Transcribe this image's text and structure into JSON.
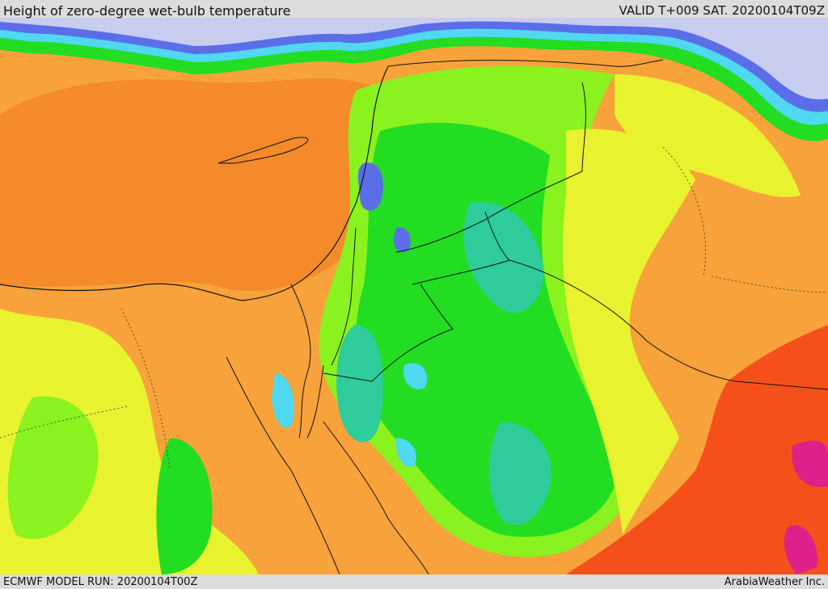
{
  "header": {
    "title": "Height of zero-degree wet-bulb temperature",
    "valid": "VALID T+009 SAT. 20200104T09Z"
  },
  "footer": {
    "model_run": "ECMWF MODEL RUN: 20200104T00Z",
    "credit": "ArabiaWeather Inc."
  },
  "map": {
    "palette": {
      "lavender": "#c8cdf0",
      "blue": "#5b6ee8",
      "cyan": "#4fd8f0",
      "teal": "#2ecc9a",
      "green": "#22dd22",
      "lime": "#8af21e",
      "yellow": "#e8f22e",
      "orange": "#f7a23a",
      "dark_orange": "#f58a2a",
      "red": "#f5501a",
      "magenta": "#e0208a"
    }
  }
}
